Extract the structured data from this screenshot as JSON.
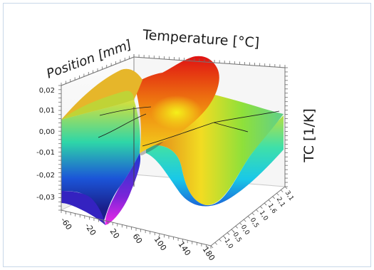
{
  "chart_data": {
    "type": "surface-3d",
    "title": "",
    "axis_labels": {
      "position": "Position [mm]",
      "temperature": "Temperature [°C]",
      "tc": "TC [1/K]"
    },
    "tc_ticks": [
      "0,02",
      "0,01",
      "0,00",
      "-0,01",
      "-0,02",
      "-0,03"
    ],
    "tc_tick_values": [
      0.02,
      0.01,
      0.0,
      -0.01,
      -0.02,
      -0.03
    ],
    "temperature_ticks": [
      "-60",
      "-20",
      "20",
      "60",
      "100",
      "140",
      "180"
    ],
    "position_ticks": [
      "-1,0",
      "-0,5",
      "0,0",
      "0,5",
      "1,0",
      "1,6",
      "2,1",
      "3,1"
    ],
    "tc_range": [
      -0.035,
      0.025
    ],
    "colormap": [
      "#e020e0",
      "#2030d0",
      "#10b0f0",
      "#20e0a0",
      "#80e040",
      "#f0e020",
      "#f08010",
      "#e01010"
    ]
  }
}
